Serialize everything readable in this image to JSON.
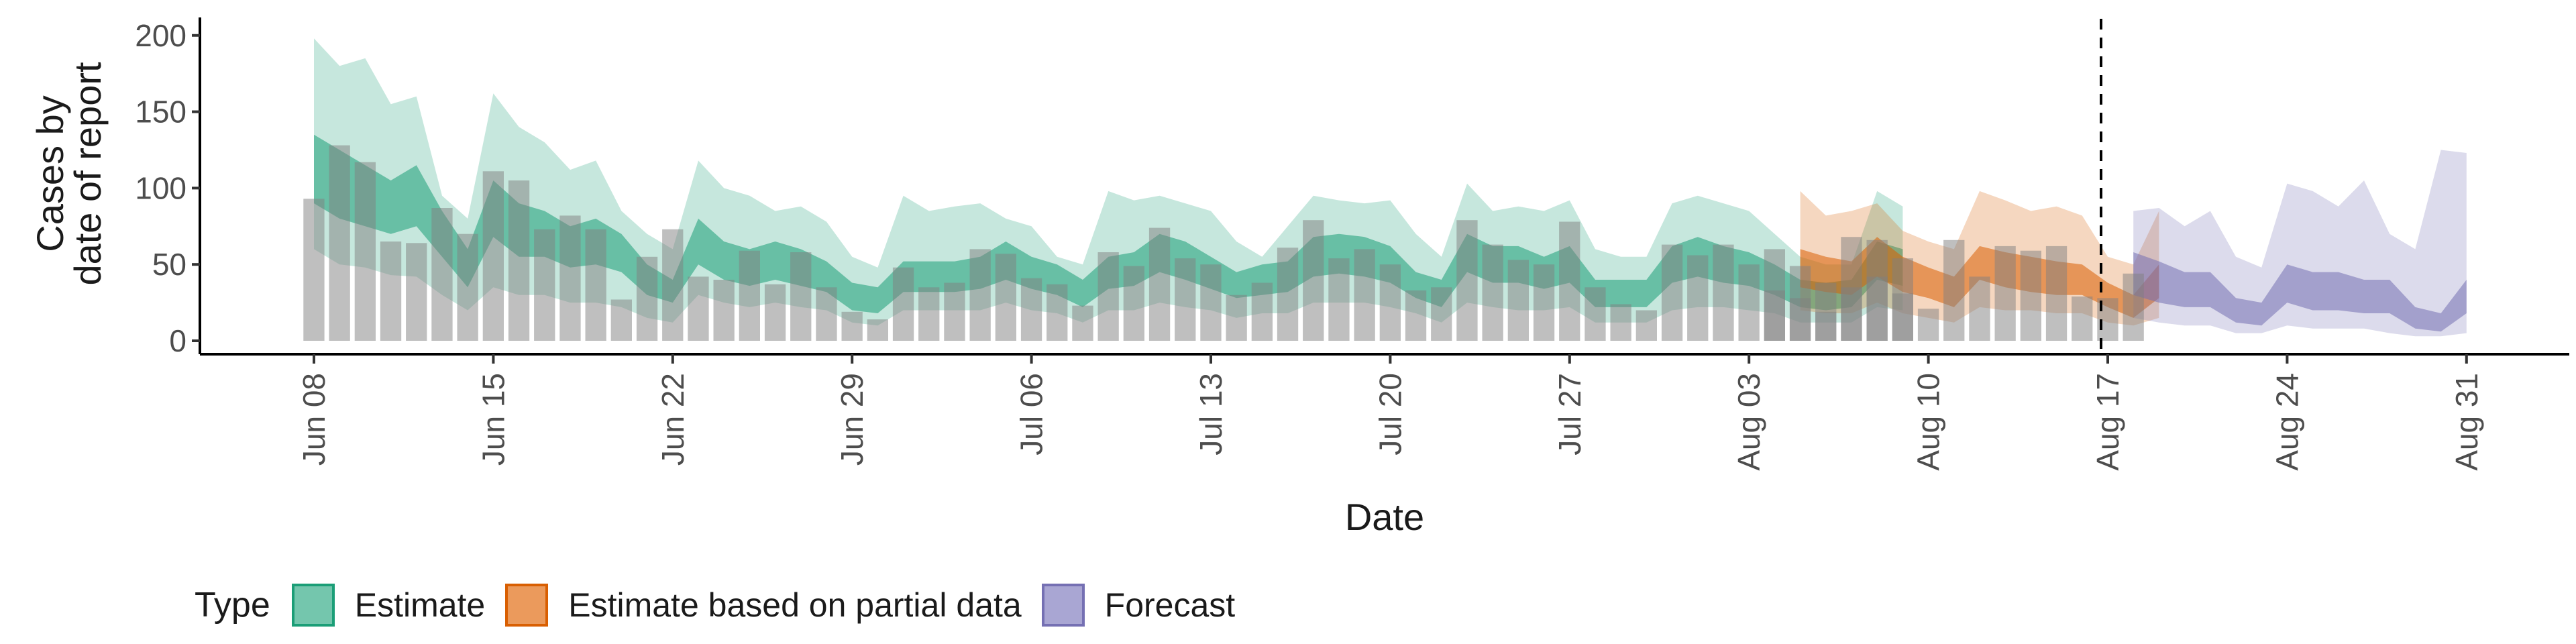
{
  "chart_data": {
    "type": "area",
    "xlabel": "Date",
    "ylabel": [
      "Cases by",
      "date of report"
    ],
    "ylim": [
      0,
      210
    ],
    "yticks": [
      0,
      50,
      100,
      150,
      200
    ],
    "start_date": "2020-06-08",
    "xtick_labels": [
      "Jun 08",
      "Jun 15",
      "Jun 22",
      "Jun 29",
      "Jul 06",
      "Jul 13",
      "Jul 20",
      "Jul 27",
      "Aug 03",
      "Aug 10",
      "Aug 17",
      "Aug 24",
      "Aug 31"
    ],
    "vline_date": "Aug 17",
    "reported_cases": {
      "start": "Jun 08",
      "values": [
        93,
        128,
        117,
        65,
        64,
        87,
        70,
        111,
        105,
        73,
        82,
        73,
        27,
        55,
        73,
        42,
        40,
        59,
        37,
        58,
        35,
        19,
        14,
        48,
        35,
        38,
        60,
        57,
        41,
        37,
        23,
        58,
        49,
        74,
        54,
        50,
        30,
        38,
        61,
        79,
        54,
        60,
        50,
        33,
        35,
        79,
        63,
        53,
        50,
        78,
        35,
        24,
        20,
        63,
        56,
        63,
        50,
        33,
        28,
        19,
        35,
        66,
        54
      ]
    },
    "reported_cases_partial": {
      "start": "Aug 04",
      "values": [
        60,
        49,
        38,
        68,
        42,
        31,
        21,
        66,
        42,
        62,
        59,
        62,
        29,
        28,
        44
      ]
    },
    "series": [
      {
        "name": "Estimate",
        "color": "#1B9E77",
        "start": "Jun 08",
        "median": [
          110,
          100,
          92,
          88,
          95,
          70,
          45,
          85,
          70,
          68,
          60,
          62,
          55,
          38,
          30,
          62,
          50,
          45,
          50,
          45,
          40,
          28,
          25,
          40,
          40,
          40,
          42,
          50,
          42,
          38,
          30,
          42,
          45,
          55,
          50,
          42,
          35,
          38,
          40,
          52,
          55,
          52,
          48,
          35,
          30,
          55,
          48,
          48,
          42,
          48,
          30,
          30,
          30,
          48,
          52,
          48,
          45,
          38,
          30,
          28,
          30,
          50,
          46
        ],
        "lower_outer": [
          60,
          50,
          48,
          43,
          42,
          30,
          20,
          35,
          30,
          30,
          25,
          25,
          22,
          15,
          12,
          30,
          25,
          22,
          25,
          22,
          20,
          12,
          10,
          20,
          20,
          20,
          20,
          25,
          20,
          18,
          12,
          20,
          20,
          25,
          22,
          20,
          15,
          18,
          18,
          25,
          25,
          25,
          22,
          18,
          12,
          25,
          22,
          20,
          20,
          22,
          12,
          12,
          12,
          20,
          22,
          22,
          20,
          18,
          12,
          12,
          12,
          22,
          20
        ],
        "lower_inner": [
          90,
          80,
          75,
          70,
          75,
          55,
          35,
          68,
          55,
          55,
          48,
          50,
          45,
          30,
          25,
          50,
          40,
          36,
          40,
          36,
          32,
          20,
          18,
          32,
          32,
          32,
          34,
          40,
          34,
          30,
          22,
          34,
          36,
          45,
          40,
          34,
          28,
          30,
          32,
          42,
          44,
          42,
          38,
          28,
          22,
          45,
          38,
          38,
          34,
          38,
          22,
          22,
          22,
          38,
          42,
          38,
          36,
          30,
          22,
          20,
          22,
          40,
          36
        ],
        "upper_inner": [
          135,
          125,
          115,
          105,
          115,
          85,
          60,
          105,
          90,
          85,
          75,
          80,
          70,
          50,
          40,
          80,
          65,
          60,
          65,
          60,
          52,
          38,
          35,
          52,
          52,
          52,
          55,
          65,
          55,
          50,
          40,
          55,
          58,
          70,
          65,
          55,
          45,
          50,
          52,
          68,
          70,
          68,
          62,
          45,
          40,
          70,
          62,
          62,
          55,
          62,
          40,
          40,
          40,
          62,
          68,
          62,
          58,
          50,
          40,
          38,
          40,
          65,
          60
        ],
        "upper_outer": [
          198,
          180,
          185,
          155,
          160,
          95,
          80,
          162,
          140,
          130,
          112,
          118,
          85,
          70,
          60,
          118,
          100,
          95,
          85,
          88,
          78,
          55,
          48,
          95,
          85,
          88,
          90,
          80,
          75,
          55,
          50,
          98,
          92,
          95,
          90,
          85,
          65,
          55,
          75,
          95,
          92,
          90,
          92,
          70,
          55,
          103,
          85,
          88,
          85,
          92,
          60,
          55,
          55,
          90,
          95,
          90,
          85,
          70,
          55,
          50,
          50,
          98,
          88
        ]
      },
      {
        "name": "Estimate based on partial data",
        "color": "#D95F02",
        "start": "Aug 05",
        "median": [
          45,
          42,
          40,
          55,
          42,
          35,
          30,
          50,
          45,
          42,
          40,
          38,
          28,
          22,
          35
        ],
        "lower_outer": [
          20,
          18,
          18,
          25,
          18,
          15,
          12,
          22,
          20,
          20,
          18,
          18,
          12,
          10,
          15
        ],
        "lower_inner": [
          35,
          32,
          30,
          42,
          32,
          28,
          22,
          40,
          35,
          32,
          30,
          30,
          22,
          15,
          28
        ],
        "upper_inner": [
          60,
          55,
          52,
          68,
          55,
          48,
          42,
          62,
          58,
          55,
          52,
          50,
          38,
          30,
          50
        ],
        "upper_outer": [
          98,
          82,
          85,
          90,
          72,
          65,
          60,
          98,
          92,
          85,
          88,
          82,
          55,
          50,
          85
        ]
      },
      {
        "name": "Forecast",
        "color": "#7570B3",
        "start": "Aug 18",
        "median": [
          45,
          40,
          35,
          35,
          20,
          18,
          38,
          32,
          32,
          30,
          28,
          15,
          12,
          28
        ],
        "lower_outer": [
          15,
          12,
          10,
          10,
          5,
          5,
          10,
          8,
          8,
          8,
          5,
          3,
          3,
          5
        ],
        "lower_inner": [
          30,
          25,
          22,
          22,
          12,
          10,
          25,
          20,
          20,
          18,
          18,
          8,
          6,
          18
        ],
        "upper_inner": [
          58,
          52,
          45,
          45,
          28,
          25,
          50,
          45,
          45,
          40,
          40,
          22,
          18,
          40
        ],
        "upper_outer": [
          85,
          87,
          75,
          85,
          55,
          48,
          103,
          98,
          88,
          105,
          70,
          60,
          125,
          123
        ]
      }
    ],
    "legend": {
      "title": "Type",
      "position": "bottom-left",
      "items": [
        {
          "label": "Estimate",
          "color": "#1B9E77"
        },
        {
          "label": "Estimate based on partial data",
          "color": "#D95F02"
        },
        {
          "label": "Forecast",
          "color": "#7570B3"
        }
      ]
    }
  }
}
